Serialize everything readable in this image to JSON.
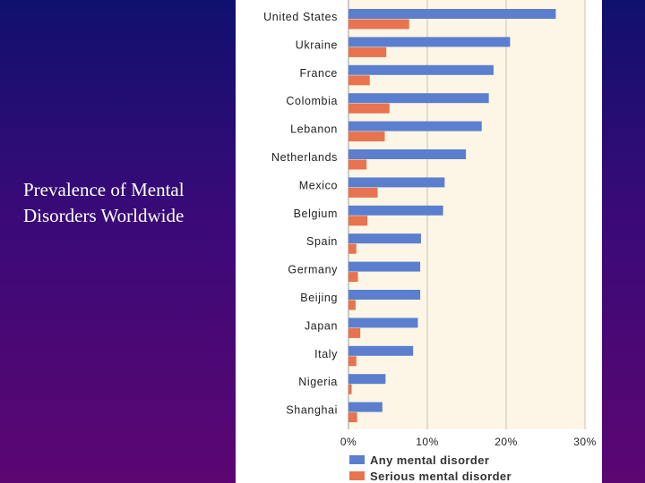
{
  "slide": {
    "title_line1": "Prevalence of Mental",
    "title_line2": "Disorders Worldwide"
  },
  "chart_data": {
    "type": "bar",
    "orientation": "horizontal",
    "categories": [
      "United States",
      "Ukraine",
      "France",
      "Colombia",
      "Lebanon",
      "Netherlands",
      "Mexico",
      "Belgium",
      "Spain",
      "Germany",
      "Beijing",
      "Japan",
      "Italy",
      "Nigeria",
      "Shanghai"
    ],
    "series": [
      {
        "name": "Any mental disorder",
        "color": "#5b7fce",
        "values": [
          26.3,
          20.5,
          18.4,
          17.8,
          16.9,
          14.9,
          12.2,
          12.0,
          9.2,
          9.1,
          9.1,
          8.8,
          8.2,
          4.7,
          4.3
        ]
      },
      {
        "name": "Serious mental disorder",
        "color": "#e8734f",
        "values": [
          7.7,
          4.8,
          2.7,
          5.2,
          4.6,
          2.3,
          3.7,
          2.4,
          1.0,
          1.2,
          0.9,
          1.5,
          1.0,
          0.4,
          1.1
        ]
      }
    ],
    "xlim": [
      0,
      30
    ],
    "xticks": [
      0,
      10,
      20,
      30
    ],
    "xtick_labels": [
      "0%",
      "10%",
      "20%",
      "30%"
    ],
    "grid": true,
    "plot_background": "#fdf6e6",
    "legend": {
      "position": "bottom"
    }
  }
}
